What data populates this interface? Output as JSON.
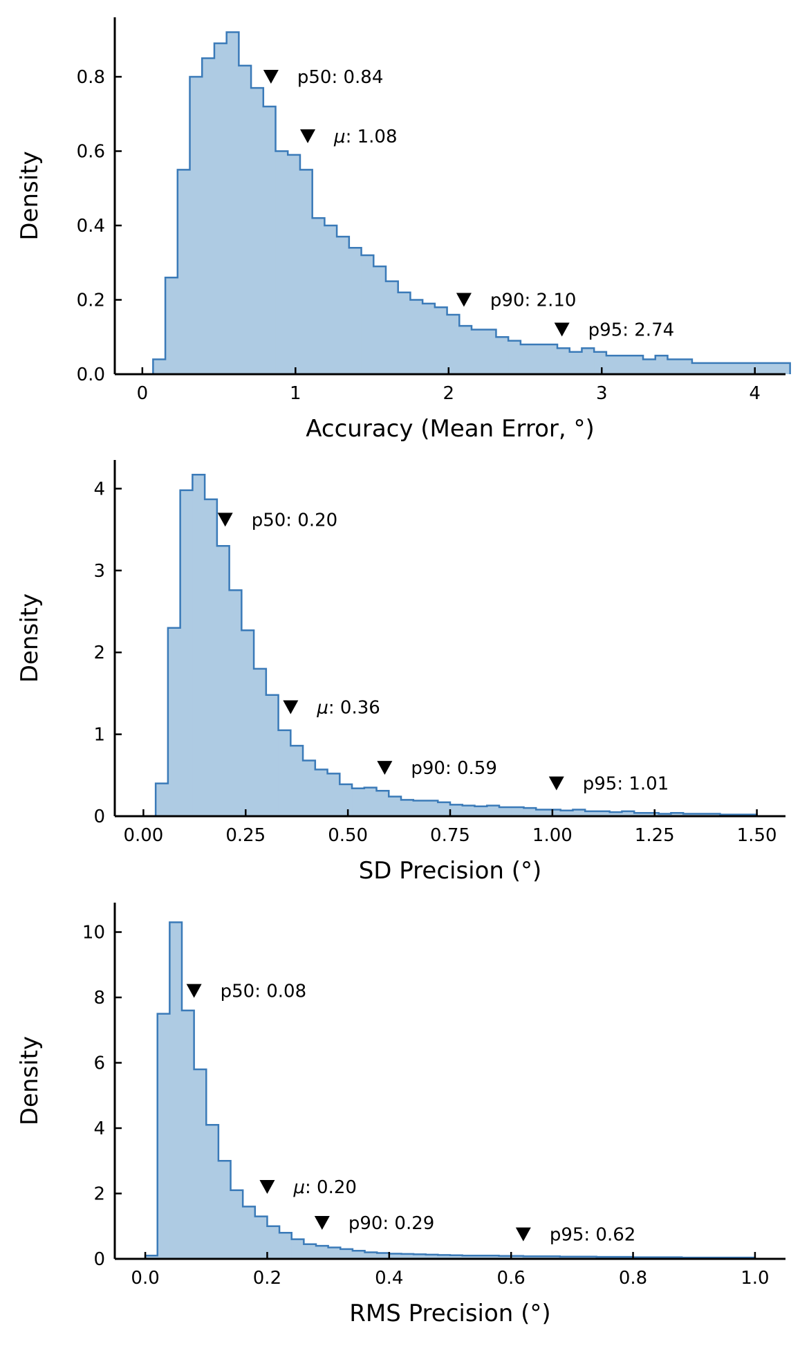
{
  "colors": {
    "fill": "#aecbe3",
    "stroke": "#3a7ab8",
    "axis": "#000000"
  },
  "chart_data": [
    {
      "type": "histogram",
      "xlabel": "Accuracy (Mean Error, °)",
      "ylabel": "Density",
      "xlim": [
        -0.18,
        4.2
      ],
      "ylim": [
        0,
        0.96
      ],
      "xticks": [
        0,
        1,
        2,
        3,
        4
      ],
      "xtick_labels": [
        "0",
        "1",
        "2",
        "3",
        "4"
      ],
      "yticks": [
        0,
        0.2,
        0.4,
        0.6,
        0.8
      ],
      "ytick_labels": [
        "0.0",
        "0.2",
        "0.4",
        "0.6",
        "0.8"
      ],
      "bin_start": 0.07,
      "bin_width": 0.08,
      "values": [
        0.04,
        0.26,
        0.55,
        0.8,
        0.85,
        0.89,
        0.92,
        0.83,
        0.77,
        0.72,
        0.6,
        0.59,
        0.55,
        0.42,
        0.4,
        0.37,
        0.34,
        0.32,
        0.29,
        0.25,
        0.22,
        0.2,
        0.19,
        0.18,
        0.16,
        0.13,
        0.12,
        0.12,
        0.1,
        0.09,
        0.08,
        0.08,
        0.08,
        0.07,
        0.06,
        0.07,
        0.06,
        0.05,
        0.05,
        0.05,
        0.04,
        0.05,
        0.04,
        0.04,
        0.03,
        0.03,
        0.03,
        0.03,
        0.03,
        0.03,
        0.03,
        0.03
      ],
      "markers": [
        {
          "x": 0.84,
          "y": 0.8,
          "label": "p50: 0.84"
        },
        {
          "x": 1.08,
          "y": 0.64,
          "label": "1.08",
          "mu": true
        },
        {
          "x": 2.1,
          "y": 0.2,
          "label": "p90: 2.10"
        },
        {
          "x": 2.74,
          "y": 0.12,
          "label": "p95: 2.74"
        }
      ]
    },
    {
      "type": "histogram",
      "xlabel": "SD Precision (°)",
      "ylabel": "Density",
      "xlim": [
        -0.07,
        1.57
      ],
      "ylim": [
        0,
        4.35
      ],
      "xticks": [
        0,
        0.25,
        0.5,
        0.75,
        1.0,
        1.25,
        1.5
      ],
      "xtick_labels": [
        "0.00",
        "0.25",
        "0.50",
        "0.75",
        "1.00",
        "1.25",
        "1.50"
      ],
      "yticks": [
        0,
        1,
        2,
        3,
        4
      ],
      "ytick_labels": [
        "0",
        "1",
        "2",
        "3",
        "4"
      ],
      "bin_start": 0.03,
      "bin_width": 0.03,
      "values": [
        0.4,
        2.3,
        3.98,
        4.17,
        3.87,
        3.3,
        2.76,
        2.27,
        1.8,
        1.48,
        1.05,
        0.86,
        0.68,
        0.57,
        0.52,
        0.39,
        0.34,
        0.35,
        0.31,
        0.24,
        0.2,
        0.19,
        0.19,
        0.17,
        0.14,
        0.13,
        0.12,
        0.13,
        0.11,
        0.11,
        0.1,
        0.08,
        0.08,
        0.07,
        0.08,
        0.06,
        0.06,
        0.05,
        0.06,
        0.04,
        0.04,
        0.03,
        0.04,
        0.03,
        0.03,
        0.03,
        0.02,
        0.02,
        0.02
      ],
      "markers": [
        {
          "x": 0.2,
          "y": 3.62,
          "label": "p50: 0.20"
        },
        {
          "x": 0.36,
          "y": 1.33,
          "label": "0.36",
          "mu": true
        },
        {
          "x": 0.59,
          "y": 0.59,
          "label": "p90: 0.59"
        },
        {
          "x": 1.01,
          "y": 0.4,
          "label": "p95: 1.01"
        }
      ]
    },
    {
      "type": "histogram",
      "xlabel": "RMS Precision (°)",
      "ylabel": "Density",
      "xlim": [
        -0.05,
        1.05
      ],
      "ylim": [
        0,
        10.9
      ],
      "xticks": [
        0,
        0.2,
        0.4,
        0.6,
        0.8,
        1.0
      ],
      "xtick_labels": [
        "0.0",
        "0.2",
        "0.4",
        "0.6",
        "0.8",
        "1.0"
      ],
      "yticks": [
        0,
        2,
        4,
        6,
        8,
        10
      ],
      "ytick_labels": [
        "0",
        "2",
        "4",
        "6",
        "8",
        "10"
      ],
      "bin_start": 0.0,
      "bin_width": 0.02,
      "values": [
        0.1,
        7.5,
        10.3,
        7.6,
        5.8,
        4.1,
        3.0,
        2.1,
        1.6,
        1.3,
        1.0,
        0.8,
        0.6,
        0.45,
        0.4,
        0.35,
        0.3,
        0.25,
        0.2,
        0.18,
        0.16,
        0.15,
        0.14,
        0.13,
        0.12,
        0.11,
        0.1,
        0.1,
        0.1,
        0.09,
        0.09,
        0.08,
        0.08,
        0.08,
        0.07,
        0.07,
        0.07,
        0.06,
        0.06,
        0.06,
        0.05,
        0.05,
        0.05,
        0.05,
        0.04,
        0.04,
        0.04,
        0.04,
        0.04,
        0.04
      ],
      "markers": [
        {
          "x": 0.08,
          "y": 8.2,
          "label": "p50: 0.08"
        },
        {
          "x": 0.2,
          "y": 2.2,
          "label": "0.20",
          "mu": true
        },
        {
          "x": 0.29,
          "y": 1.1,
          "label": "p90: 0.29"
        },
        {
          "x": 0.62,
          "y": 0.75,
          "label": "p95: 0.62"
        }
      ]
    }
  ]
}
